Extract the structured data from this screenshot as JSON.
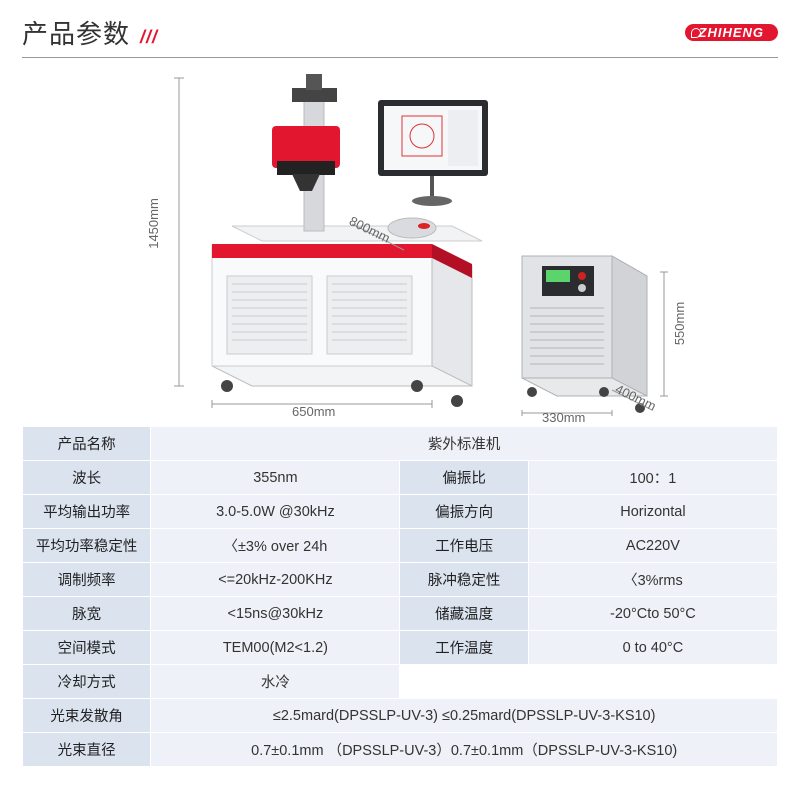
{
  "header": {
    "title": "产品参数",
    "slashes": "///",
    "brand": "ZHIHENG"
  },
  "dimensions": {
    "height_main": "1450mm",
    "depth_main": "800mm",
    "width_main": "650mm",
    "height_chiller": "550mm",
    "width_chiller": "330mm",
    "depth_chiller": "400mm"
  },
  "table": {
    "rows": [
      {
        "type": "full",
        "label": "产品名称",
        "value": "紫外标准机"
      },
      {
        "type": "split",
        "label1": "波长",
        "value1": "355nm",
        "label2": "偏振比",
        "value2": "100：1"
      },
      {
        "type": "split",
        "label1": "平均输出功率",
        "value1": "3.0-5.0W  @30kHz",
        "label2": "偏振方向",
        "value2": "Horizontal"
      },
      {
        "type": "split",
        "label1": "平均功率稳定性",
        "value1": "〈±3% over 24h",
        "label2": "工作电压",
        "value2": "AC220V"
      },
      {
        "type": "split",
        "label1": "调制频率",
        "value1": "<=20kHz-200KHz",
        "label2": "脉冲稳定性",
        "value2": "〈3%rms"
      },
      {
        "type": "split",
        "label1": "脉宽",
        "value1": "<15ns@30kHz",
        "label2": "储藏温度",
        "value2": "-20°Cto 50°C"
      },
      {
        "type": "split",
        "label1": "空间模式",
        "value1": "TEM00(M2<1.2)",
        "label2": "工作温度",
        "value2": "0 to 40°C"
      },
      {
        "type": "half",
        "label": "冷却方式",
        "value": "水冷"
      },
      {
        "type": "full",
        "label": "光束发散角",
        "value": "≤2.5mard(DPSSLP-UV-3)    ≤0.25mard(DPSSLP-UV-3-KS10)"
      },
      {
        "type": "full",
        "label": "光束直径",
        "value": "0.7±0.1mm （DPSSLP-UV-3）0.7±0.1mm（DPSSLP-UV-3-KS10)"
      }
    ]
  },
  "colors": {
    "accent": "#e31630",
    "label_bg": "#dbe3ef",
    "value_bg": "#eef1f7",
    "machine_white": "#f7f8fa",
    "machine_panel": "#e8e9eb",
    "chiller": "#d9dadc"
  }
}
